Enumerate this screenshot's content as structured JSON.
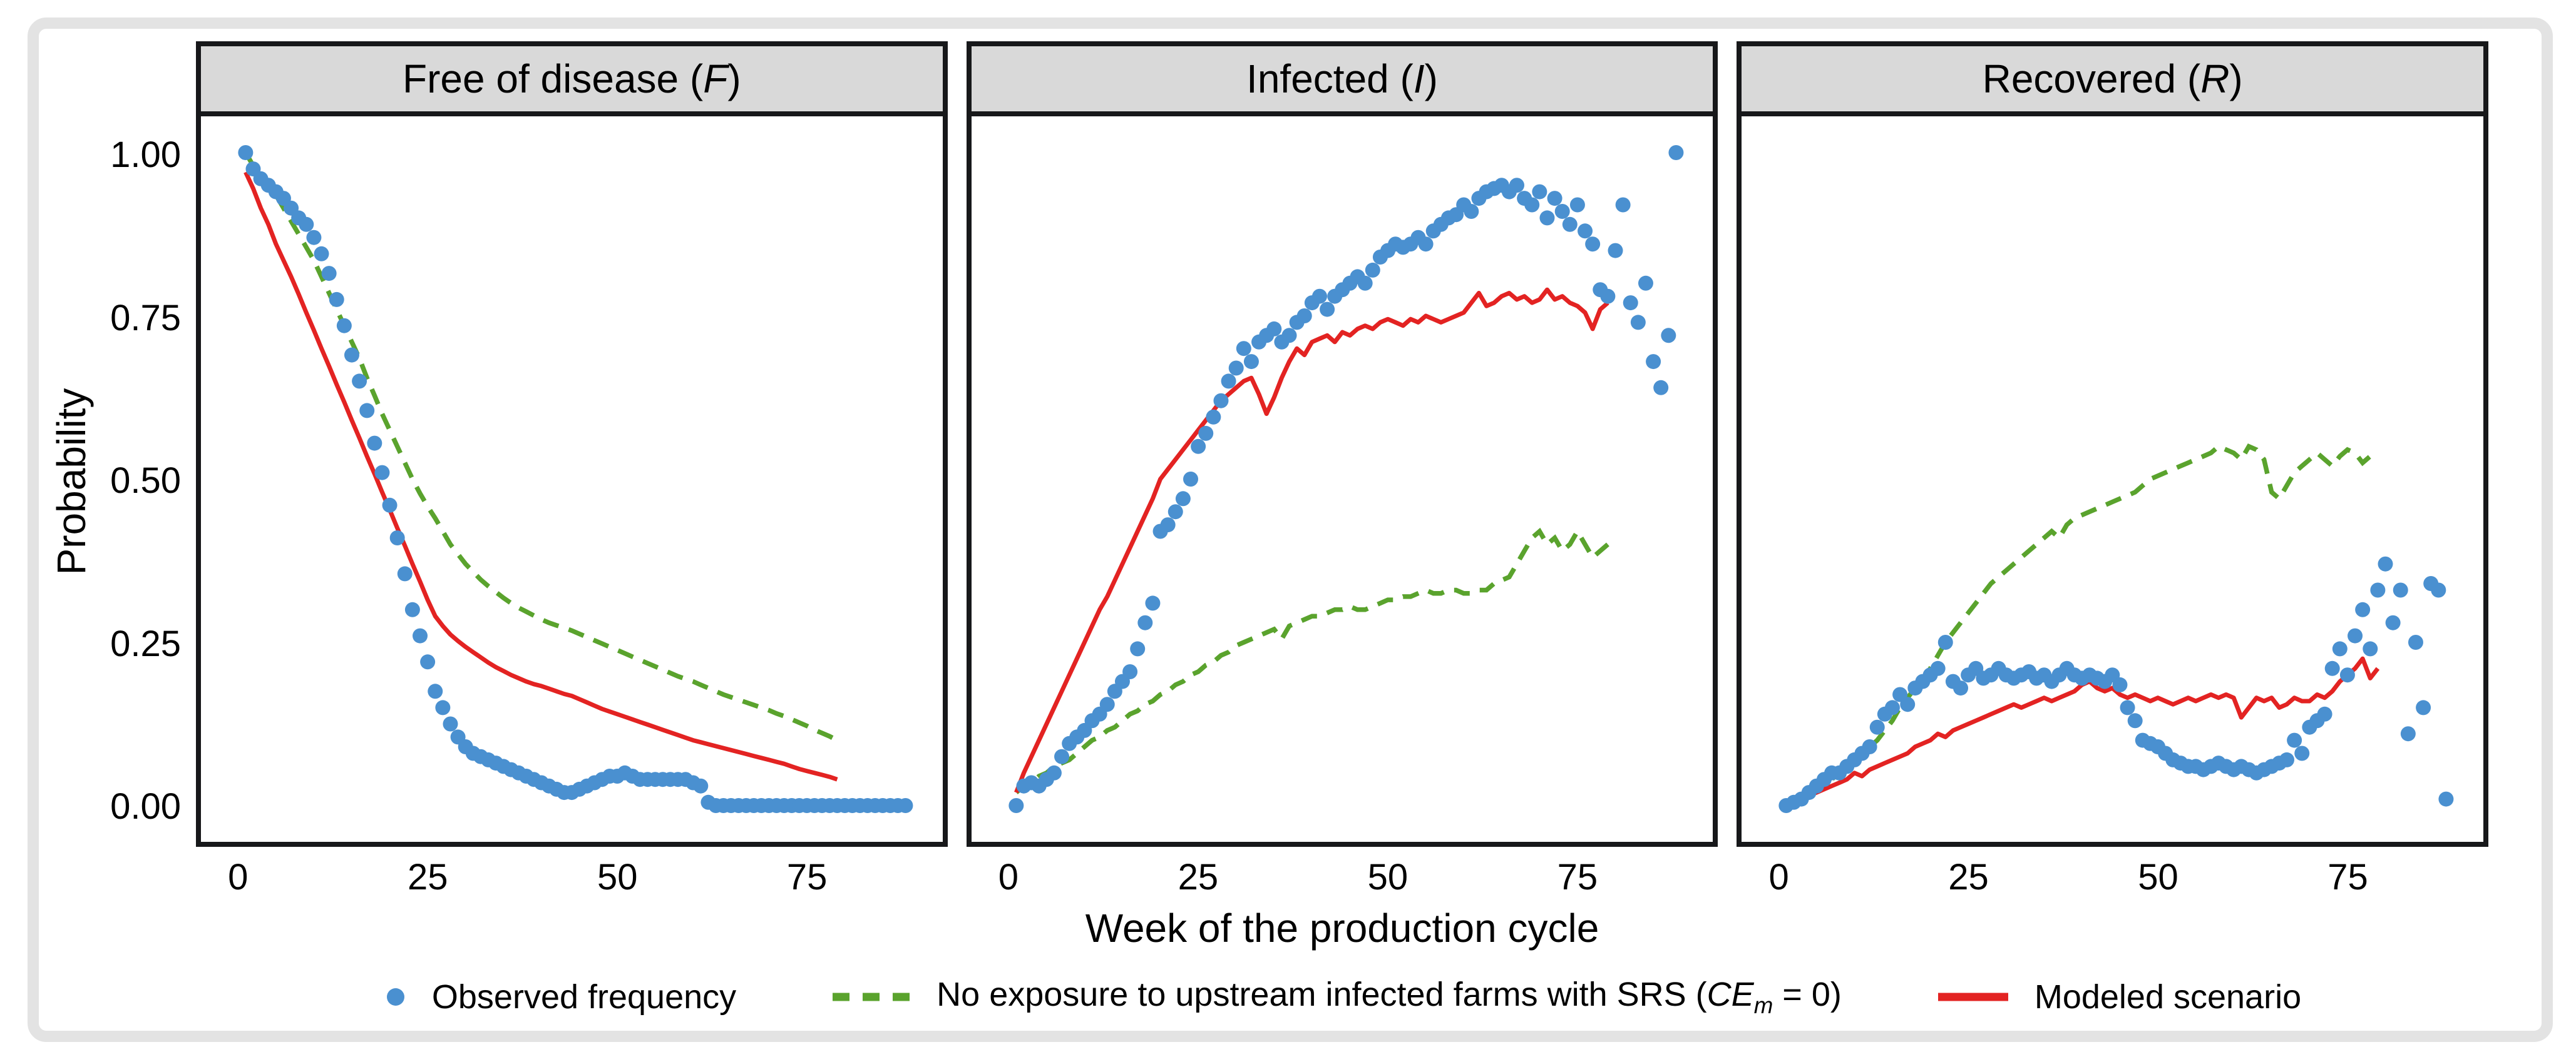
{
  "axes": {
    "y_label": "Probability",
    "x_label": "Week of the production cycle",
    "y_ticks": [
      "1.00",
      "0.75",
      "0.50",
      "0.25",
      "0.00"
    ],
    "x_ticks": [
      "0",
      "25",
      "50",
      "75"
    ]
  },
  "panels": [
    {
      "title_prefix": "Free of disease (",
      "title_italic": "F",
      "title_suffix": ")"
    },
    {
      "title_prefix": "Infected (",
      "title_italic": "I",
      "title_suffix": ")"
    },
    {
      "title_prefix": "Recovered (",
      "title_italic": "R",
      "title_suffix": ")"
    }
  ],
  "legend": {
    "items": [
      {
        "label": "Observed frequency"
      },
      {
        "label_prefix": "No exposure to upstream infected farms with SRS (",
        "label_italic": "CE",
        "label_sub": "m",
        "label_suffix": " = 0)"
      },
      {
        "label": "Modeled scenario"
      }
    ]
  },
  "colors": {
    "observed": "#4a90d0",
    "no_exposure": "#5aa32d",
    "modeled": "#e32322",
    "strip_bg": "#d9d9d9",
    "panel_border": "#17181a"
  },
  "chart_data": {
    "type": "scatter",
    "title": "",
    "xlabel": "Week of the production cycle",
    "ylabel": "Probability",
    "x_range": [
      0,
      88
    ],
    "y_range": [
      0,
      1
    ],
    "x_tick_values": [
      0,
      25,
      50,
      75
    ],
    "y_tick_values": [
      1.0,
      0.75,
      0.5,
      0.25,
      0.0
    ],
    "grid": false,
    "legend_position": "bottom",
    "series_meta": [
      {
        "id": "observed",
        "label": "Observed frequency",
        "style": "points",
        "color": "#4a90d0"
      },
      {
        "id": "no_exposure",
        "label": "No exposure to upstream infected farms with SRS (CEm = 0)",
        "style": "dashed-line",
        "color": "#5aa32d"
      },
      {
        "id": "modeled",
        "label": "Modeled scenario",
        "style": "solid-line",
        "color": "#e32322"
      }
    ],
    "panels": [
      {
        "name": "Free of disease (F)",
        "observed": {
          "week_start": 1,
          "values": [
            1.0,
            0.975,
            0.96,
            0.95,
            0.94,
            0.93,
            0.915,
            0.9,
            0.89,
            0.87,
            0.845,
            0.815,
            0.775,
            0.735,
            0.69,
            0.65,
            0.605,
            0.555,
            0.51,
            0.46,
            0.41,
            0.355,
            0.3,
            0.26,
            0.22,
            0.175,
            0.15,
            0.125,
            0.105,
            0.09,
            0.08,
            0.075,
            0.07,
            0.065,
            0.06,
            0.055,
            0.05,
            0.045,
            0.04,
            0.035,
            0.03,
            0.025,
            0.02,
            0.02,
            0.025,
            0.03,
            0.035,
            0.04,
            0.045,
            0.045,
            0.05,
            0.045,
            0.04,
            0.04,
            0.04,
            0.04,
            0.04,
            0.04,
            0.04,
            0.035,
            0.03,
            0.005,
            0,
            0,
            0,
            0,
            0,
            0,
            0,
            0,
            0,
            0,
            0,
            0,
            0,
            0,
            0,
            0,
            0,
            0,
            0,
            0,
            0,
            0,
            0,
            0,
            0,
            0
          ]
        },
        "no_exposure": {
          "week_start": 1,
          "values": [
            1.0,
            0.98,
            0.965,
            0.95,
            0.935,
            0.915,
            0.895,
            0.875,
            0.855,
            0.835,
            0.81,
            0.785,
            0.76,
            0.735,
            0.71,
            0.685,
            0.655,
            0.628,
            0.6,
            0.575,
            0.55,
            0.525,
            0.5,
            0.478,
            0.458,
            0.44,
            0.42,
            0.4,
            0.385,
            0.37,
            0.358,
            0.346,
            0.336,
            0.327,
            0.318,
            0.31,
            0.303,
            0.297,
            0.291,
            0.285,
            0.28,
            0.276,
            0.272,
            0.268,
            0.263,
            0.258,
            0.253,
            0.248,
            0.243,
            0.238,
            0.233,
            0.228,
            0.223,
            0.218,
            0.213,
            0.208,
            0.203,
            0.198,
            0.194,
            0.19,
            0.185,
            0.18,
            0.175,
            0.17,
            0.166,
            0.162,
            0.158,
            0.154,
            0.15,
            0.146,
            0.141,
            0.137,
            0.132,
            0.127,
            0.122,
            0.116,
            0.111,
            0.106,
            0.1
          ]
        },
        "modeled": {
          "week_start": 1,
          "values": [
            0.97,
            0.945,
            0.915,
            0.89,
            0.86,
            0.835,
            0.81,
            0.783,
            0.755,
            0.728,
            0.7,
            0.673,
            0.645,
            0.618,
            0.59,
            0.563,
            0.535,
            0.508,
            0.48,
            0.453,
            0.425,
            0.398,
            0.37,
            0.343,
            0.315,
            0.29,
            0.275,
            0.262,
            0.252,
            0.243,
            0.235,
            0.227,
            0.219,
            0.212,
            0.206,
            0.2,
            0.195,
            0.19,
            0.186,
            0.183,
            0.179,
            0.175,
            0.171,
            0.168,
            0.163,
            0.158,
            0.153,
            0.148,
            0.144,
            0.14,
            0.136,
            0.132,
            0.128,
            0.124,
            0.12,
            0.116,
            0.112,
            0.108,
            0.104,
            0.1,
            0.097,
            0.094,
            0.091,
            0.088,
            0.085,
            0.082,
            0.079,
            0.076,
            0.073,
            0.07,
            0.067,
            0.064,
            0.06,
            0.056,
            0.053,
            0.05,
            0.047,
            0.044,
            0.04
          ]
        }
      },
      {
        "name": "Infected (I)",
        "observed": {
          "week_start": 1,
          "values": [
            0,
            0.03,
            0.035,
            0.03,
            0.04,
            0.05,
            0.075,
            0.095,
            0.105,
            0.115,
            0.13,
            0.14,
            0.155,
            0.175,
            0.19,
            0.205,
            0.24,
            0.28,
            0.31,
            0.42,
            0.43,
            0.45,
            0.47,
            0.5,
            0.55,
            0.57,
            0.595,
            0.62,
            0.65,
            0.67,
            0.7,
            0.68,
            0.71,
            0.72,
            0.73,
            0.71,
            0.72,
            0.74,
            0.75,
            0.77,
            0.78,
            0.76,
            0.78,
            0.79,
            0.8,
            0.81,
            0.8,
            0.82,
            0.84,
            0.85,
            0.86,
            0.855,
            0.86,
            0.87,
            0.86,
            0.88,
            0.89,
            0.9,
            0.905,
            0.92,
            0.91,
            0.93,
            0.94,
            0.945,
            0.95,
            0.94,
            0.95,
            0.93,
            0.92,
            0.94,
            0.9,
            0.93,
            0.91,
            0.89,
            0.92,
            0.88,
            0.86,
            0.79,
            0.78,
            0.85,
            0.92,
            0.77,
            0.74,
            0.8,
            0.68,
            0.64,
            0.72,
            1.0
          ]
        },
        "no_exposure": {
          "week_start": 1,
          "values": [
            0.02,
            0.03,
            0.035,
            0.045,
            0.05,
            0.06,
            0.065,
            0.07,
            0.08,
            0.09,
            0.1,
            0.105,
            0.115,
            0.12,
            0.13,
            0.14,
            0.145,
            0.155,
            0.16,
            0.17,
            0.175,
            0.185,
            0.19,
            0.2,
            0.205,
            0.215,
            0.22,
            0.23,
            0.235,
            0.245,
            0.25,
            0.255,
            0.26,
            0.265,
            0.27,
            0.255,
            0.275,
            0.28,
            0.285,
            0.29,
            0.29,
            0.295,
            0.3,
            0.3,
            0.305,
            0.3,
            0.3,
            0.305,
            0.31,
            0.315,
            0.315,
            0.32,
            0.32,
            0.325,
            0.33,
            0.325,
            0.325,
            0.33,
            0.33,
            0.325,
            0.325,
            0.33,
            0.33,
            0.34,
            0.345,
            0.35,
            0.37,
            0.39,
            0.41,
            0.42,
            0.4,
            0.41,
            0.39,
            0.4,
            0.42,
            0.4,
            0.38,
            0.39,
            0.4
          ]
        },
        "modeled": {
          "week_start": 1,
          "values": [
            0.02,
            0.05,
            0.075,
            0.1,
            0.125,
            0.15,
            0.175,
            0.2,
            0.225,
            0.25,
            0.275,
            0.3,
            0.32,
            0.345,
            0.37,
            0.395,
            0.42,
            0.445,
            0.47,
            0.5,
            0.515,
            0.53,
            0.545,
            0.56,
            0.575,
            0.59,
            0.605,
            0.62,
            0.63,
            0.64,
            0.65,
            0.655,
            0.63,
            0.6,
            0.625,
            0.655,
            0.68,
            0.7,
            0.69,
            0.71,
            0.715,
            0.72,
            0.71,
            0.725,
            0.72,
            0.73,
            0.735,
            0.73,
            0.74,
            0.745,
            0.74,
            0.735,
            0.745,
            0.74,
            0.75,
            0.745,
            0.74,
            0.745,
            0.75,
            0.755,
            0.77,
            0.785,
            0.765,
            0.77,
            0.78,
            0.785,
            0.775,
            0.78,
            0.77,
            0.775,
            0.79,
            0.775,
            0.78,
            0.77,
            0.765,
            0.755,
            0.73,
            0.76,
            0.77
          ]
        }
      },
      {
        "name": "Recovered (R)",
        "observed": {
          "week_start": 1,
          "values": [
            0,
            0.005,
            0.01,
            0.02,
            0.03,
            0.04,
            0.05,
            0.05,
            0.06,
            0.07,
            0.08,
            0.09,
            0.12,
            0.14,
            0.15,
            0.17,
            0.155,
            0.18,
            0.19,
            0.2,
            0.21,
            0.25,
            0.19,
            0.18,
            0.2,
            0.21,
            0.195,
            0.2,
            0.21,
            0.2,
            0.195,
            0.2,
            0.205,
            0.195,
            0.2,
            0.19,
            0.2,
            0.21,
            0.2,
            0.195,
            0.2,
            0.195,
            0.19,
            0.2,
            0.185,
            0.15,
            0.13,
            0.1,
            0.095,
            0.09,
            0.08,
            0.07,
            0.065,
            0.06,
            0.06,
            0.055,
            0.06,
            0.065,
            0.06,
            0.055,
            0.06,
            0.055,
            0.05,
            0.055,
            0.06,
            0.065,
            0.07,
            0.1,
            0.08,
            0.12,
            0.13,
            0.14,
            0.21,
            0.24,
            0.2,
            0.26,
            0.3,
            0.24,
            0.33,
            0.37,
            0.28,
            0.33,
            0.11,
            0.25,
            0.15,
            0.34,
            0.33,
            0.01
          ]
        },
        "no_exposure": {
          "week_start": 1,
          "values": [
            0,
            0.005,
            0.01,
            0.02,
            0.025,
            0.035,
            0.04,
            0.05,
            0.055,
            0.065,
            0.075,
            0.09,
            0.1,
            0.115,
            0.13,
            0.15,
            0.165,
            0.18,
            0.195,
            0.21,
            0.23,
            0.25,
            0.265,
            0.28,
            0.295,
            0.31,
            0.325,
            0.34,
            0.35,
            0.36,
            0.37,
            0.38,
            0.39,
            0.4,
            0.41,
            0.42,
            0.41,
            0.43,
            0.44,
            0.445,
            0.45,
            0.455,
            0.46,
            0.465,
            0.47,
            0.475,
            0.48,
            0.49,
            0.5,
            0.505,
            0.51,
            0.515,
            0.52,
            0.525,
            0.53,
            0.535,
            0.54,
            0.55,
            0.545,
            0.54,
            0.53,
            0.55,
            0.545,
            0.53,
            0.48,
            0.47,
            0.49,
            0.51,
            0.52,
            0.53,
            0.54,
            0.53,
            0.52,
            0.535,
            0.545,
            0.54,
            0.525,
            0.535,
            0.53
          ]
        },
        "modeled": {
          "week_start": 1,
          "values": [
            0,
            0.005,
            0.01,
            0.015,
            0.02,
            0.025,
            0.03,
            0.035,
            0.04,
            0.05,
            0.045,
            0.055,
            0.06,
            0.065,
            0.07,
            0.075,
            0.08,
            0.09,
            0.095,
            0.1,
            0.11,
            0.105,
            0.115,
            0.12,
            0.125,
            0.13,
            0.135,
            0.14,
            0.145,
            0.15,
            0.155,
            0.15,
            0.155,
            0.16,
            0.165,
            0.16,
            0.165,
            0.17,
            0.175,
            0.185,
            0.19,
            0.18,
            0.175,
            0.18,
            0.17,
            0.165,
            0.17,
            0.165,
            0.16,
            0.165,
            0.16,
            0.155,
            0.16,
            0.165,
            0.16,
            0.165,
            0.17,
            0.165,
            0.17,
            0.165,
            0.135,
            0.15,
            0.165,
            0.16,
            0.165,
            0.15,
            0.155,
            0.165,
            0.16,
            0.16,
            0.17,
            0.165,
            0.175,
            0.19,
            0.2,
            0.21,
            0.225,
            0.195,
            0.21
          ]
        }
      }
    ]
  }
}
